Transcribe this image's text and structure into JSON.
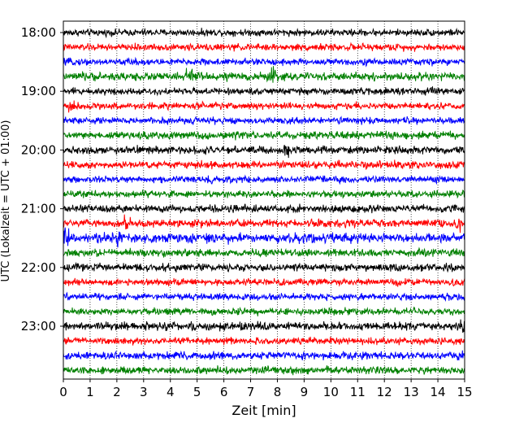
{
  "chart_data": {
    "type": "line",
    "subtype": "helicorder",
    "xlabel": "Zeit  [min]",
    "ylabel": "UTC (Lokalzeit = UTC + 01:00)",
    "xlim": [
      0,
      15
    ],
    "xticks": [
      "0",
      "1",
      "2",
      "3",
      "4",
      "5",
      "6",
      "7",
      "8",
      "9",
      "10",
      "11",
      "12",
      "13",
      "14",
      "15"
    ],
    "x_grid": "dotted vertical lines at every minute",
    "y_grid": "none",
    "trace_interval_minutes": 15,
    "trace_color_cycle": [
      "#000000",
      "#ff0000",
      "#0000ff",
      "#008000"
    ],
    "yticks": [
      {
        "label": "18:00"
      },
      {
        "label": "19:00"
      },
      {
        "label": "20:00"
      },
      {
        "label": "21:00"
      },
      {
        "label": "22:00"
      },
      {
        "label": "23:00"
      }
    ],
    "series": [
      {
        "start": "18:00",
        "color": "#000000",
        "amplitude": 0.1,
        "peak_minutes": [],
        "baseline_offset": 0
      },
      {
        "start": "18:15",
        "color": "#ff0000",
        "amplitude": 0.1,
        "peak_minutes": [],
        "baseline_offset": 0
      },
      {
        "start": "18:30",
        "color": "#0000ff",
        "amplitude": 0.1,
        "peak_minutes": [],
        "baseline_offset": 0
      },
      {
        "start": "18:45",
        "color": "#008000",
        "amplitude": 0.12,
        "peak_minutes": [
          4.7,
          7.8
        ],
        "baseline_offset": 0
      },
      {
        "start": "19:00",
        "color": "#000000",
        "amplitude": 0.1,
        "peak_minutes": [],
        "baseline_offset": 0
      },
      {
        "start": "19:15",
        "color": "#ff0000",
        "amplitude": 0.1,
        "peak_minutes": [
          0.3
        ],
        "baseline_offset": 0
      },
      {
        "start": "19:30",
        "color": "#0000ff",
        "amplitude": 0.1,
        "peak_minutes": [],
        "baseline_offset": 0
      },
      {
        "start": "19:45",
        "color": "#008000",
        "amplitude": 0.11,
        "peak_minutes": [],
        "baseline_offset": 0
      },
      {
        "start": "20:00",
        "color": "#000000",
        "amplitude": 0.11,
        "peak_minutes": [
          8.3
        ],
        "baseline_offset": 0
      },
      {
        "start": "20:15",
        "color": "#ff0000",
        "amplitude": 0.11,
        "peak_minutes": [],
        "baseline_offset": 0
      },
      {
        "start": "20:30",
        "color": "#0000ff",
        "amplitude": 0.1,
        "peak_minutes": [],
        "baseline_offset": 0
      },
      {
        "start": "20:45",
        "color": "#008000",
        "amplitude": 0.1,
        "peak_minutes": [],
        "baseline_offset": 0
      },
      {
        "start": "21:00",
        "color": "#000000",
        "amplitude": 0.11,
        "peak_minutes": [],
        "baseline_offset": 0
      },
      {
        "start": "21:15",
        "color": "#ff0000",
        "amplitude": 0.11,
        "peak_minutes": [
          2.4,
          14.8
        ],
        "baseline_offset": 0
      },
      {
        "start": "21:30",
        "color": "#0000ff",
        "amplitude": 0.14,
        "peak_minutes": [
          0.1,
          2.1
        ],
        "baseline_offset": 0
      },
      {
        "start": "21:45",
        "color": "#008000",
        "amplitude": 0.11,
        "peak_minutes": [],
        "baseline_offset": 0
      },
      {
        "start": "22:00",
        "color": "#000000",
        "amplitude": 0.11,
        "peak_minutes": [],
        "baseline_offset": 0
      },
      {
        "start": "22:15",
        "color": "#ff0000",
        "amplitude": 0.1,
        "peak_minutes": [],
        "baseline_offset": 0
      },
      {
        "start": "22:30",
        "color": "#0000ff",
        "amplitude": 0.1,
        "peak_minutes": [],
        "baseline_offset": 0
      },
      {
        "start": "22:45",
        "color": "#008000",
        "amplitude": 0.1,
        "peak_minutes": [],
        "baseline_offset": 0
      },
      {
        "start": "23:00",
        "color": "#000000",
        "amplitude": 0.12,
        "peak_minutes": [
          14.9
        ],
        "baseline_offset": 0
      },
      {
        "start": "23:15",
        "color": "#ff0000",
        "amplitude": 0.1,
        "peak_minutes": [],
        "baseline_offset": 0
      },
      {
        "start": "23:30",
        "color": "#0000ff",
        "amplitude": 0.11,
        "peak_minutes": [],
        "baseline_offset": 0
      },
      {
        "start": "23:45",
        "color": "#008000",
        "amplitude": 0.11,
        "peak_minutes": [],
        "baseline_offset": 0
      }
    ]
  }
}
